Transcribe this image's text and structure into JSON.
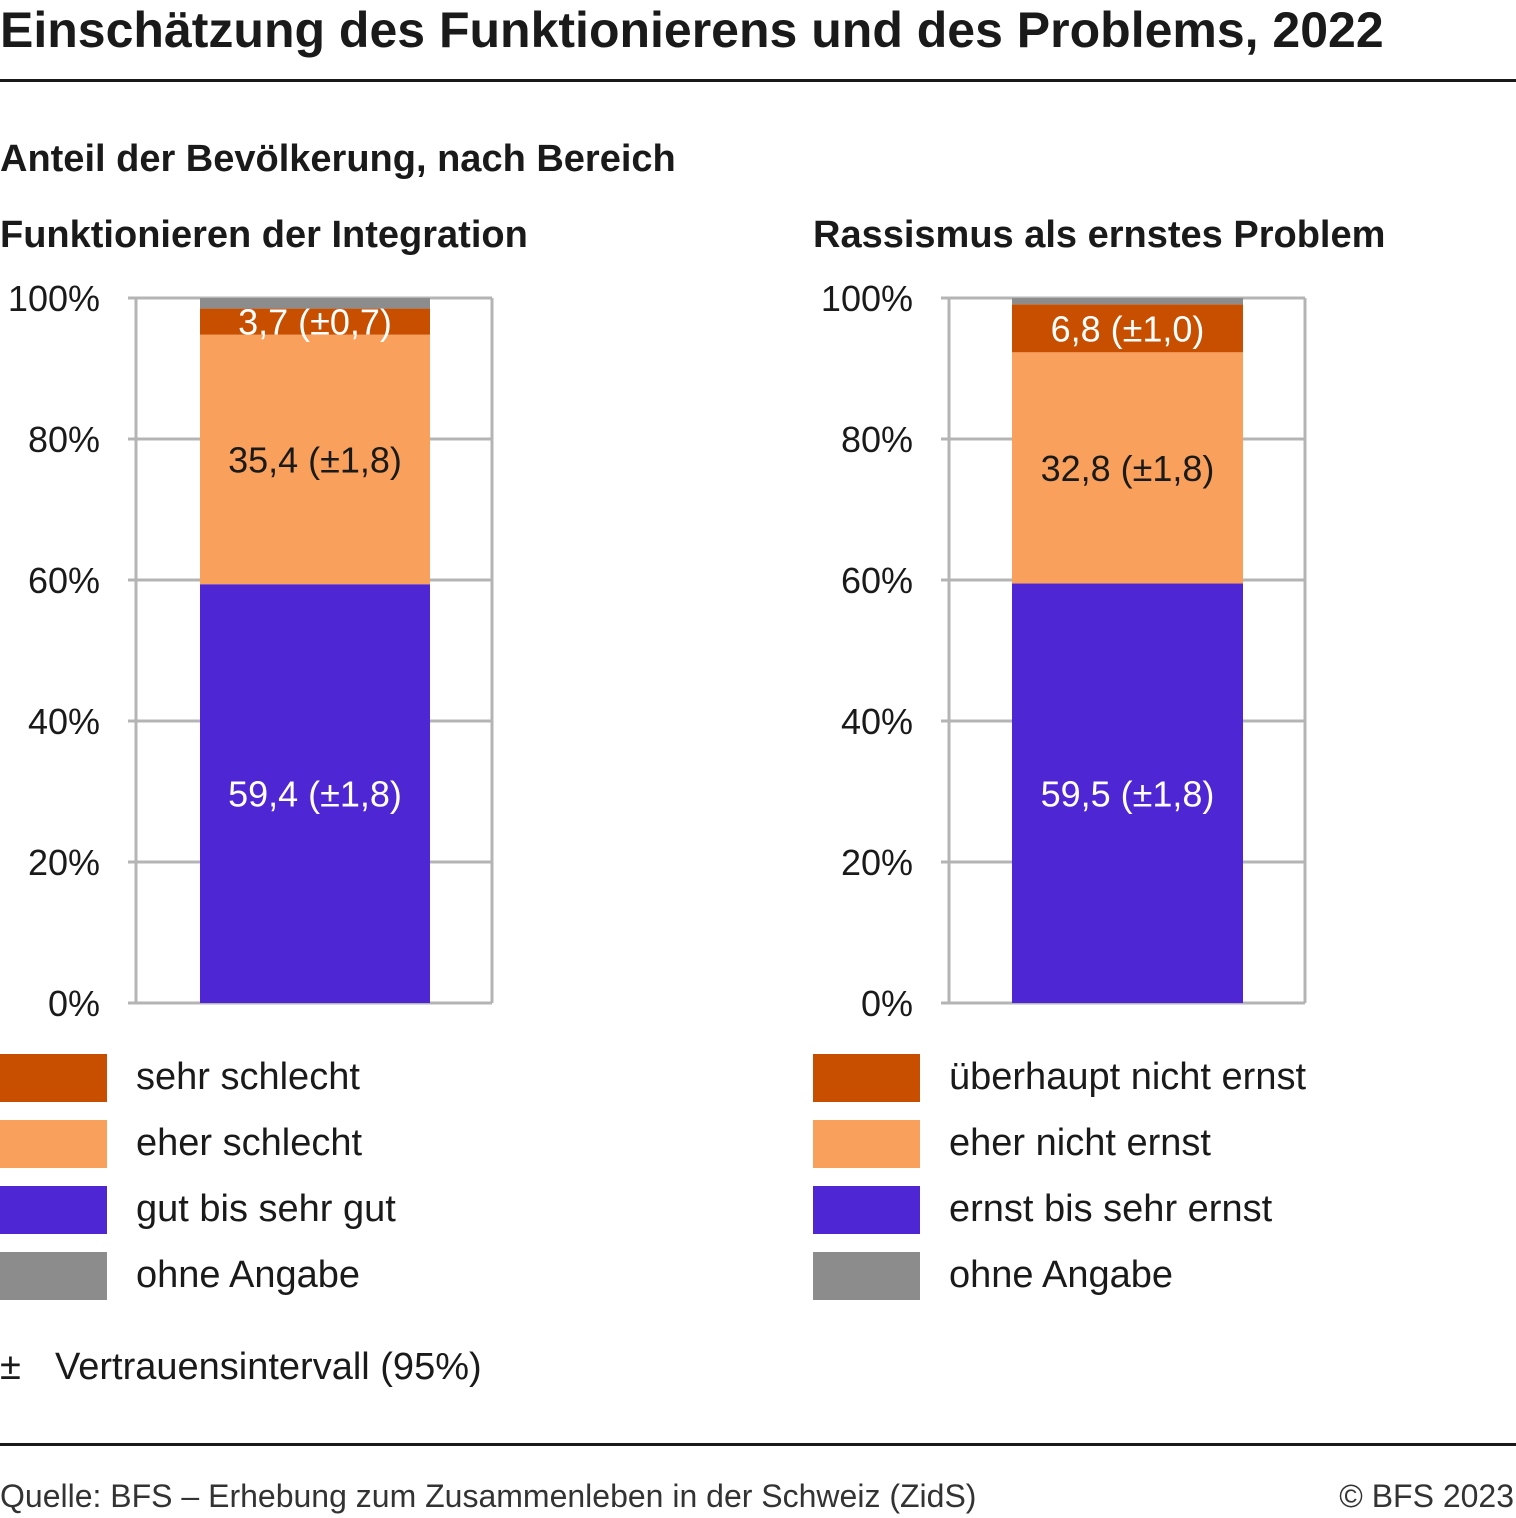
{
  "header": {
    "title": "Einschätzung des Funktionierens und des Problems, 2022",
    "subtitle": "Anteil der Bevölkerung, nach Bereich"
  },
  "colors": {
    "sehr_schlecht": "#c84f00",
    "eher_schlecht": "#f8a05c",
    "gut": "#4f26d4",
    "ohne_angabe": "#8c8c8c",
    "grid": "#b4b4b4"
  },
  "chart_data": [
    {
      "type": "bar",
      "stacked": true,
      "title": "Funktionieren der Integration",
      "ylim": [
        0,
        100
      ],
      "yticks": [
        "0%",
        "20%",
        "40%",
        "60%",
        "80%",
        "100%"
      ],
      "segments": [
        {
          "name": "gut bis sehr gut",
          "value": 59.4,
          "label": "59,4 (±1,8)",
          "color": "#4f26d4",
          "text_color": "#ffffff"
        },
        {
          "name": "eher schlecht",
          "value": 35.4,
          "label": "35,4 (±1,8)",
          "color": "#f8a05c",
          "text_color": "#1a1a1a"
        },
        {
          "name": "sehr schlecht",
          "value": 3.7,
          "label": "3,7 (±0,7)",
          "color": "#c84f00",
          "text_color": "#ffffff"
        },
        {
          "name": "ohne Angabe",
          "value": 1.5,
          "label": "",
          "color": "#8c8c8c",
          "text_color": "#ffffff"
        }
      ]
    },
    {
      "type": "bar",
      "stacked": true,
      "title": "Rassismus als ernstes Problem",
      "ylim": [
        0,
        100
      ],
      "yticks": [
        "0%",
        "20%",
        "40%",
        "60%",
        "80%",
        "100%"
      ],
      "segments": [
        {
          "name": "ernst bis sehr ernst",
          "value": 59.5,
          "label": "59,5 (±1,8)",
          "color": "#4f26d4",
          "text_color": "#ffffff"
        },
        {
          "name": "eher nicht ernst",
          "value": 32.8,
          "label": "32,8 (±1,8)",
          "color": "#f8a05c",
          "text_color": "#1a1a1a"
        },
        {
          "name": "überhaupt nicht ernst",
          "value": 6.8,
          "label": "6,8 (±1,0)",
          "color": "#c84f00",
          "text_color": "#ffffff"
        },
        {
          "name": "ohne Angabe",
          "value": 0.9,
          "label": "",
          "color": "#8c8c8c",
          "text_color": "#ffffff"
        }
      ]
    }
  ],
  "legends": [
    {
      "items": [
        {
          "label": "sehr schlecht",
          "color": "#c84f00"
        },
        {
          "label": "eher schlecht",
          "color": "#f8a05c"
        },
        {
          "label": "gut bis sehr gut",
          "color": "#4f26d4"
        },
        {
          "label": "ohne Angabe",
          "color": "#8c8c8c"
        }
      ]
    },
    {
      "items": [
        {
          "label": "überhaupt nicht ernst",
          "color": "#c84f00"
        },
        {
          "label": "eher nicht ernst",
          "color": "#f8a05c"
        },
        {
          "label": "ernst bis sehr ernst",
          "color": "#4f26d4"
        },
        {
          "label": "ohne Angabe",
          "color": "#8c8c8c"
        }
      ]
    }
  ],
  "note": {
    "symbol": "±",
    "text": "Vertrauensintervall (95%)"
  },
  "footer": {
    "source": "Quelle: BFS – Erhebung zum Zusammenleben in der Schweiz (ZidS)",
    "copyright": "© BFS 2023"
  }
}
